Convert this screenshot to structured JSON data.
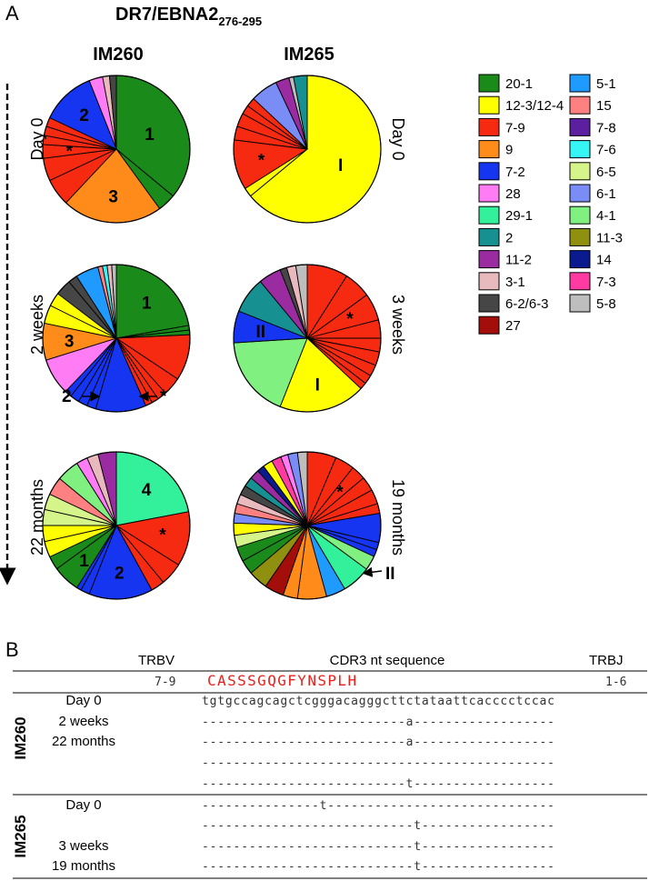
{
  "panel_a_label": "A",
  "panel_b_label": "B",
  "chart_data": {
    "type": "pie",
    "title": "DR7/EBNA2",
    "title_subscript": "276-295",
    "patients": [
      "IM260",
      "IM265"
    ],
    "timepoints": {
      "IM260": [
        "Day 0",
        "2 weeks",
        "22 months"
      ],
      "IM265": [
        "Day 0",
        "3 weeks",
        "19 months"
      ]
    },
    "legend": [
      {
        "label": "20-1",
        "color": "#1a8a1a"
      },
      {
        "label": "12-3/12-4",
        "color": "#ffff00"
      },
      {
        "label": "7-9",
        "color": "#f52a10"
      },
      {
        "label": "9",
        "color": "#ff8c1a"
      },
      {
        "label": "7-2",
        "color": "#1535f0"
      },
      {
        "label": "28",
        "color": "#ff7cf5"
      },
      {
        "label": "29-1",
        "color": "#33f09a"
      },
      {
        "label": "2",
        "color": "#169090"
      },
      {
        "label": "11-2",
        "color": "#9a2ba0"
      },
      {
        "label": "3-1",
        "color": "#e8b9bd"
      },
      {
        "label": "6-2/6-3",
        "color": "#464646"
      },
      {
        "label": "27",
        "color": "#a30d0a"
      },
      {
        "label": "5-1",
        "color": "#1f9aff"
      },
      {
        "label": "15",
        "color": "#ff8080"
      },
      {
        "label": "7-8",
        "color": "#5b1fa0"
      },
      {
        "label": "7-6",
        "color": "#35f5f5"
      },
      {
        "label": "6-5",
        "color": "#d5f58a"
      },
      {
        "label": "6-1",
        "color": "#7a8cf5"
      },
      {
        "label": "4-1",
        "color": "#80f080"
      },
      {
        "label": "11-3",
        "color": "#8f8f10"
      },
      {
        "label": "14",
        "color": "#0a1a8f"
      },
      {
        "label": "7-3",
        "color": "#ff3aa0"
      },
      {
        "label": "5-8",
        "color": "#bebebe"
      }
    ],
    "pies": [
      {
        "patient": "IM260",
        "timepoint": "Day 0",
        "slices": [
          {
            "v": "20-1",
            "pct": 36.0,
            "label": "1"
          },
          {
            "v": "20-1",
            "pct": 4.0
          },
          {
            "v": "9",
            "pct": 22.0,
            "label": "3"
          },
          {
            "v": "7-9",
            "pct": 6.0
          },
          {
            "v": "7-9",
            "pct": 5.0
          },
          {
            "v": "7-9",
            "pct": 3.0,
            "label": "*"
          },
          {
            "v": "7-9",
            "pct": 2.0
          },
          {
            "v": "7-9",
            "pct": 2.0
          },
          {
            "v": "7-9",
            "pct": 2.0
          },
          {
            "v": "7-2",
            "pct": 12.0,
            "label": "2"
          },
          {
            "v": "28",
            "pct": 3.0
          },
          {
            "v": "3-1",
            "pct": 1.5
          },
          {
            "v": "6-2/6-3",
            "pct": 1.5
          }
        ]
      },
      {
        "patient": "IM260",
        "timepoint": "2 weeks",
        "slices": [
          {
            "v": "20-1",
            "pct": 22.0,
            "label": "1"
          },
          {
            "v": "20-1",
            "pct": 1.0
          },
          {
            "v": "20-1",
            "pct": 1.0
          },
          {
            "v": "7-9",
            "pct": 10.0
          },
          {
            "v": "7-9",
            "pct": 4.0
          },
          {
            "v": "7-9",
            "pct": 2.0,
            "label": "*"
          },
          {
            "v": "7-9",
            "pct": 1.5
          },
          {
            "v": "7-9",
            "pct": 1.5
          },
          {
            "v": "7-2",
            "pct": 11.0
          },
          {
            "v": "7-2",
            "pct": 2.0
          },
          {
            "v": "7-2",
            "pct": 2.0
          },
          {
            "v": "7-2",
            "pct": 2.0
          },
          {
            "v": "7-2",
            "pct": 1.5,
            "label": "2"
          },
          {
            "v": "28",
            "pct": 8.0
          },
          {
            "v": "9",
            "pct": 8.0,
            "label": "3"
          },
          {
            "v": "12-3/12-4",
            "pct": 4.0
          },
          {
            "v": "12-3/12-4",
            "pct": 3.0
          },
          {
            "v": "6-2/6-3",
            "pct": 3.5
          },
          {
            "v": "6-2/6-3",
            "pct": 2.0
          },
          {
            "v": "5-1",
            "pct": 5.0
          },
          {
            "v": "15",
            "pct": 1.0
          },
          {
            "v": "7-6",
            "pct": 1.0
          },
          {
            "v": "3-1",
            "pct": 1.0
          },
          {
            "v": "5-8",
            "pct": 1.0
          }
        ]
      },
      {
        "patient": "IM260",
        "timepoint": "22 months",
        "slices": [
          {
            "v": "29-1",
            "pct": 22.0,
            "label": "4"
          },
          {
            "v": "7-9",
            "pct": 12.0,
            "label": "*"
          },
          {
            "v": "7-9",
            "pct": 5.0
          },
          {
            "v": "7-9",
            "pct": 3.0
          },
          {
            "v": "7-2",
            "pct": 14.0,
            "label": "2"
          },
          {
            "v": "7-2",
            "pct": 2.0
          },
          {
            "v": "7-2",
            "pct": 1.0
          },
          {
            "v": "20-1",
            "pct": 6.0,
            "label": "1"
          },
          {
            "v": "20-1",
            "pct": 3.0
          },
          {
            "v": "12-3/12-4",
            "pct": 3.5
          },
          {
            "v": "12-3/12-4",
            "pct": 3.5
          },
          {
            "v": "6-5",
            "pct": 3.5
          },
          {
            "v": "6-5",
            "pct": 3.5
          },
          {
            "v": "15",
            "pct": 4.0
          },
          {
            "v": "4-1",
            "pct": 5.0
          },
          {
            "v": "28",
            "pct": 2.5
          },
          {
            "v": "3-1",
            "pct": 2.5
          },
          {
            "v": "11-2",
            "pct": 4.0
          }
        ]
      },
      {
        "patient": "IM265",
        "timepoint": "Day 0",
        "slices": [
          {
            "v": "12-3/12-4",
            "pct": 64.0,
            "label": "I"
          },
          {
            "v": "12-3/12-4",
            "pct": 2.0
          },
          {
            "v": "7-9",
            "pct": 11.0,
            "label": "*"
          },
          {
            "v": "7-9",
            "pct": 3.0
          },
          {
            "v": "7-9",
            "pct": 3.0
          },
          {
            "v": "7-9",
            "pct": 2.0
          },
          {
            "v": "7-9",
            "pct": 2.0
          },
          {
            "v": "6-1",
            "pct": 6.0
          },
          {
            "v": "11-2",
            "pct": 3.0
          },
          {
            "v": "5-8",
            "pct": 1.0
          },
          {
            "v": "2",
            "pct": 3.0
          }
        ]
      },
      {
        "patient": "IM265",
        "timepoint": "3 weeks",
        "slices": [
          {
            "v": "7-9",
            "pct": 9.0
          },
          {
            "v": "7-9",
            "pct": 6.0
          },
          {
            "v": "7-9",
            "pct": 6.0,
            "label": "*"
          },
          {
            "v": "7-9",
            "pct": 4.0
          },
          {
            "v": "7-9",
            "pct": 3.0
          },
          {
            "v": "7-9",
            "pct": 3.0
          },
          {
            "v": "7-9",
            "pct": 2.5
          },
          {
            "v": "7-9",
            "pct": 2.0
          },
          {
            "v": "7-9",
            "pct": 1.5
          },
          {
            "v": "12-3/12-4",
            "pct": 19.0,
            "label": "I"
          },
          {
            "v": "4-1",
            "pct": 18.0
          },
          {
            "v": "7-2",
            "pct": 7.0,
            "label": "II"
          },
          {
            "v": "2",
            "pct": 8.0
          },
          {
            "v": "11-2",
            "pct": 5.0
          },
          {
            "v": "6-2/6-3",
            "pct": 1.5
          },
          {
            "v": "3-1",
            "pct": 2.0
          },
          {
            "v": "5-8",
            "pct": 2.5
          }
        ]
      },
      {
        "patient": "IM265",
        "timepoint": "19 months",
        "slices": [
          {
            "v": "7-9",
            "pct": 6.0
          },
          {
            "v": "7-9",
            "pct": 4.0
          },
          {
            "v": "7-9",
            "pct": 3.0,
            "label": "*"
          },
          {
            "v": "7-9",
            "pct": 3.0
          },
          {
            "v": "7-9",
            "pct": 3.0
          },
          {
            "v": "7-9",
            "pct": 2.0
          },
          {
            "v": "7-2",
            "pct": 6.0
          },
          {
            "v": "7-2",
            "pct": 1.5,
            "label": "II"
          },
          {
            "v": "7-2",
            "pct": 1.5
          },
          {
            "v": "4-1",
            "pct": 3.0
          },
          {
            "v": "29-1",
            "pct": 6.0
          },
          {
            "v": "5-1",
            "pct": 4.0
          },
          {
            "v": "9",
            "pct": 6.0
          },
          {
            "v": "9",
            "pct": 3.0
          },
          {
            "v": "27",
            "pct": 4.0
          },
          {
            "v": "11-3",
            "pct": 4.0
          },
          {
            "v": "20-1",
            "pct": 3.0
          },
          {
            "v": "20-1",
            "pct": 3.0
          },
          {
            "v": "6-5",
            "pct": 2.5
          },
          {
            "v": "12-3/12-4",
            "pct": 2.5
          },
          {
            "v": "6-1",
            "pct": 2.0
          },
          {
            "v": "15",
            "pct": 2.0
          },
          {
            "v": "3-1",
            "pct": 2.0
          },
          {
            "v": "6-2/6-3",
            "pct": 2.0
          },
          {
            "v": "2",
            "pct": 2.0
          },
          {
            "v": "11-2",
            "pct": 2.0
          },
          {
            "v": "14",
            "pct": 1.5
          },
          {
            "v": "12-3/12-4",
            "pct": 2.0
          },
          {
            "v": "7-3",
            "pct": 2.0
          },
          {
            "v": "28",
            "pct": 1.5
          },
          {
            "v": "6-1",
            "pct": 2.0
          },
          {
            "v": "5-8",
            "pct": 2.0
          }
        ]
      }
    ]
  },
  "table": {
    "headers": {
      "trbv": "TRBV",
      "cdr3": "CDR3 nt sequence",
      "trbj": "TRBJ"
    },
    "reference": {
      "trbv": "7-9",
      "peptide": "CASSSGQGFYNSPLH",
      "trbj": "1-6"
    },
    "groups": [
      {
        "patient": "IM260",
        "rows": [
          {
            "label": "Day 0",
            "seq": "tgtgccagcagctcgggacagggcttctataattcacccctccac"
          },
          {
            "label": "2 weeks",
            "seq": "--------------------------a------------------"
          },
          {
            "label": "22 months",
            "seq": "--------------------------a------------------"
          },
          {
            "label": "",
            "seq": "---------------------------------------------"
          },
          {
            "label": "",
            "seq": "--------------------------t------------------"
          }
        ]
      },
      {
        "patient": "IM265",
        "rows": [
          {
            "label": "Day 0",
            "seq": "---------------t-----------------------------"
          },
          {
            "label": "",
            "seq": "---------------------------t-----------------"
          },
          {
            "label": "3 weeks",
            "seq": "---------------------------t-----------------"
          },
          {
            "label": "19 months",
            "seq": "---------------------------t-----------------"
          }
        ]
      }
    ]
  }
}
